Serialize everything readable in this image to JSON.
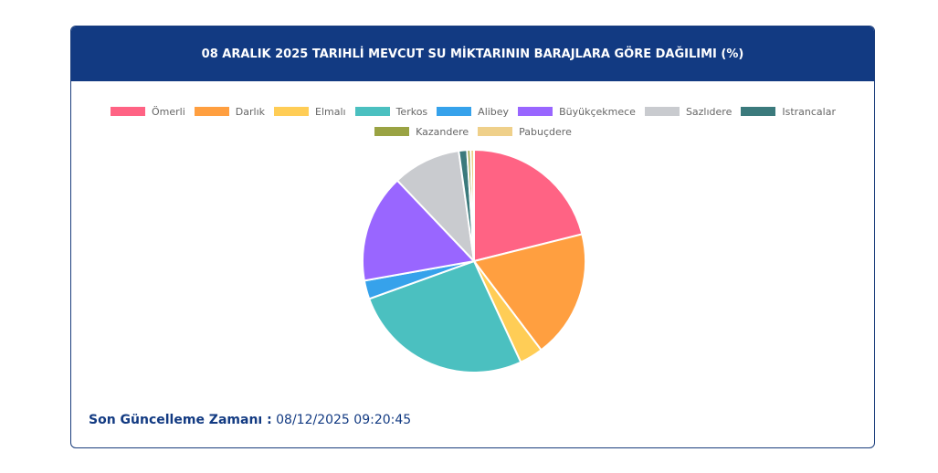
{
  "chart_data": {
    "type": "pie",
    "title": "08 ARALIK 2025 TARIHLİ MEVCUT SU MİKTARININ BARAJLARA GÖRE DAĞILIMI (%)",
    "categories": [
      "Ömerli",
      "Darlık",
      "Elmalı",
      "Terkos",
      "Alibey",
      "Büyükçekmece",
      "Sazlıdere",
      "Istrancalar",
      "Kazandere",
      "Pabuçdere"
    ],
    "values": [
      21.1,
      18.6,
      3.4,
      26.4,
      2.7,
      15.7,
      9.9,
      1.2,
      0.5,
      0.5
    ],
    "colors": [
      "#ff6384",
      "#ff9f40",
      "#ffcd56",
      "#4bc0c0",
      "#36a2eb",
      "#9966ff",
      "#c9cbcf",
      "#3b7a7c",
      "#9aa343",
      "#efd08a"
    ]
  },
  "footer": {
    "label": "Son Güncelleme Zamanı :",
    "value": "08/12/2025 09:20:45"
  }
}
